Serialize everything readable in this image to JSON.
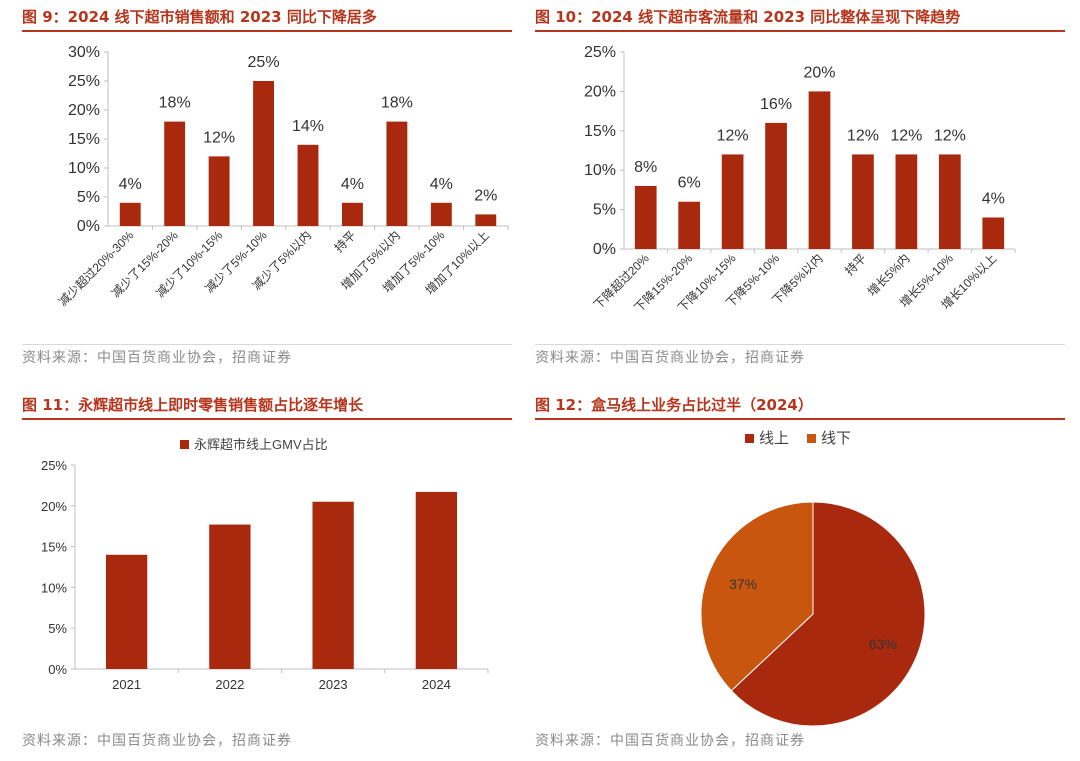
{
  "panels": {
    "p1": {
      "title": "图 9：2024 线下超市销售额和 2023 同比下降居多",
      "source": "资料来源：中国百货商业协会，招商证券",
      "chart_data": {
        "type": "bar",
        "categories": [
          "减少超过20%-30%",
          "减少了15%-20%",
          "减少了10%-15%",
          "减少了5%-10%",
          "减少了5%以内",
          "持平",
          "增加了5%以内",
          "增加了5%-10%",
          "增加了10%以上"
        ],
        "values": [
          4,
          18,
          12,
          25,
          14,
          4,
          18,
          4,
          2
        ],
        "data_labels": [
          "4%",
          "18%",
          "12%",
          "25%",
          "14%",
          "4%",
          "18%",
          "4%",
          "2%"
        ],
        "yticks": [
          "0%",
          "5%",
          "10%",
          "15%",
          "20%",
          "25%",
          "30%"
        ],
        "ylim": [
          0,
          30
        ],
        "color": "#a9290f"
      }
    },
    "p2": {
      "title": "图 10：2024 线下超市客流量和 2023 同比整体呈现下降趋势",
      "source": "资料来源：中国百货商业协会，招商证券",
      "chart_data": {
        "type": "bar",
        "categories": [
          "下降超过20%",
          "下降15%-20%",
          "下降10%-15%",
          "下降5%-10%",
          "下降5%以内",
          "持平",
          "增长5%内",
          "增长5%-10%",
          "增长10%以上"
        ],
        "values": [
          8,
          6,
          12,
          16,
          20,
          12,
          12,
          12,
          4
        ],
        "data_labels": [
          "8%",
          "6%",
          "12%",
          "16%",
          "20%",
          "12%",
          "12%",
          "12%",
          "4%"
        ],
        "yticks": [
          "0%",
          "5%",
          "10%",
          "15%",
          "20%",
          "25%"
        ],
        "ylim": [
          0,
          25
        ],
        "color": "#a9290f"
      }
    },
    "p3": {
      "title": "图 11：永辉超市线上即时零售销售额占比逐年增长",
      "source": "资料来源：中国百货商业协会，招商证券",
      "chart_data": {
        "type": "bar",
        "categories": [
          "2021",
          "2022",
          "2023",
          "2024"
        ],
        "series": [
          {
            "name": "永辉超市线上GMV占比",
            "values": [
              14.0,
              17.7,
              20.5,
              21.7
            ]
          }
        ],
        "yticks": [
          "0%",
          "5%",
          "10%",
          "15%",
          "20%",
          "25%"
        ],
        "ylim": [
          0,
          25
        ],
        "legend": "top",
        "color": "#a9290f"
      }
    },
    "p4": {
      "title": "图 12：盒马线上业务占比过半（2024）",
      "source": "资料来源：中国百货商业协会，招商证券",
      "chart_data": {
        "type": "pie",
        "labels": [
          "线上",
          "线下"
        ],
        "values": [
          63,
          37
        ],
        "data_labels": [
          "63%",
          "37%"
        ],
        "colors": [
          "#a9290f",
          "#c8560e"
        ],
        "legend": "top"
      }
    }
  }
}
